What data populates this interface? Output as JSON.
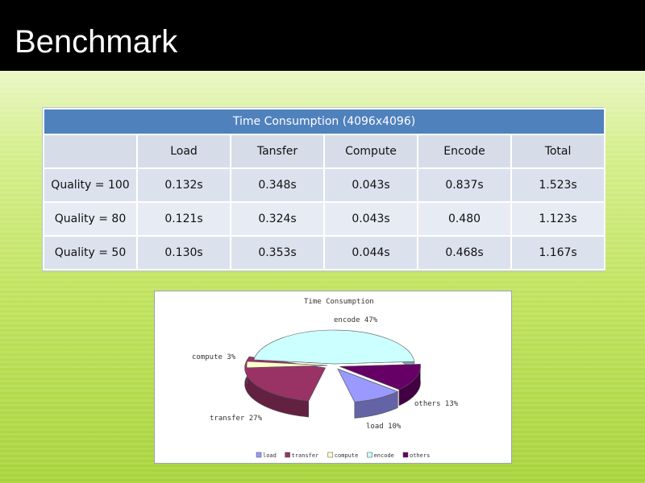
{
  "slide": {
    "title": "Benchmark"
  },
  "table": {
    "caption": "Time Consumption (4096x4096)",
    "columns": [
      "",
      "Load",
      "Tansfer",
      "Compute",
      "Encode",
      "Total"
    ],
    "rows": [
      [
        "Quality = 100",
        "0.132s",
        "0.348s",
        "0.043s",
        "0.837s",
        "1.523s"
      ],
      [
        "Quality = 80",
        "0.121s",
        "0.324s",
        "0.043s",
        "0.480",
        "1.123s"
      ],
      [
        "Quality = 50",
        "0.130s",
        "0.353s",
        "0.044s",
        "0.468s",
        "1.167s"
      ]
    ]
  },
  "chart_data": {
    "type": "pie",
    "title": "Time Consumption",
    "slices": [
      {
        "name": "load",
        "value": 10,
        "label": "load 10%",
        "color": "#9999ff"
      },
      {
        "name": "transfer",
        "value": 27,
        "label": "transfer 27%",
        "color": "#993366"
      },
      {
        "name": "compute",
        "value": 3,
        "label": "compute 3%",
        "color": "#ffffcc"
      },
      {
        "name": "encode",
        "value": 47,
        "label": "encode 47%",
        "color": "#ccffff"
      },
      {
        "name": "others",
        "value": 13,
        "label": "others 13%",
        "color": "#660066"
      }
    ],
    "legend": [
      "load",
      "transfer",
      "compute",
      "encode",
      "others"
    ],
    "legend_position": "bottom"
  }
}
